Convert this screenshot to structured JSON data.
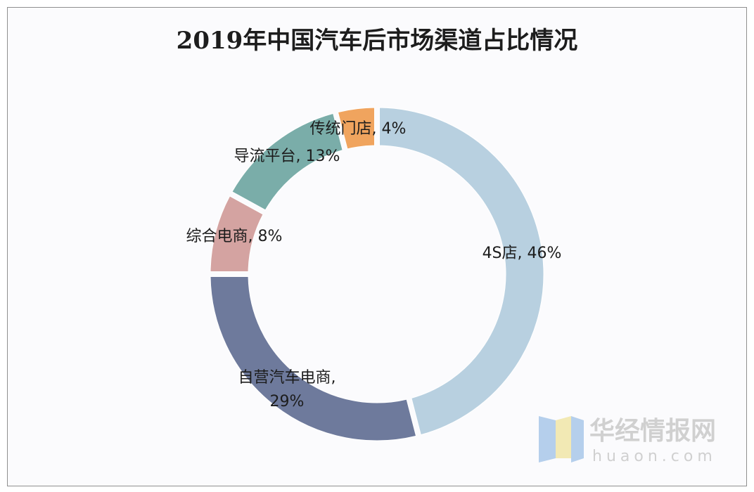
{
  "chart_data": {
    "type": "pie",
    "variant": "donut",
    "title": "2019年中国汽车后市场渠道占比情况",
    "slices": [
      {
        "label": "4S店",
        "value": 46,
        "display": "4S店, 46%",
        "color": "#b8d0e0"
      },
      {
        "label": "自营汽车电商",
        "value": 29,
        "display": "自营汽车电商,|29%",
        "color": "#6e7a9c"
      },
      {
        "label": "综合电商",
        "value": 8,
        "display": "综合电商, 8%",
        "color": "#d4a3a1"
      },
      {
        "label": "导流平台",
        "value": 13,
        "display": "导流平台, 13%",
        "color": "#7aada9"
      },
      {
        "label": "传统门店",
        "value": 4,
        "display": "传统门店, 4%",
        "color": "#f0a45e"
      }
    ],
    "start": "12 o'clock",
    "direction": "clockwise",
    "legend": "none"
  },
  "watermark": {
    "name": "华经情报网",
    "url": "huaon.com"
  }
}
